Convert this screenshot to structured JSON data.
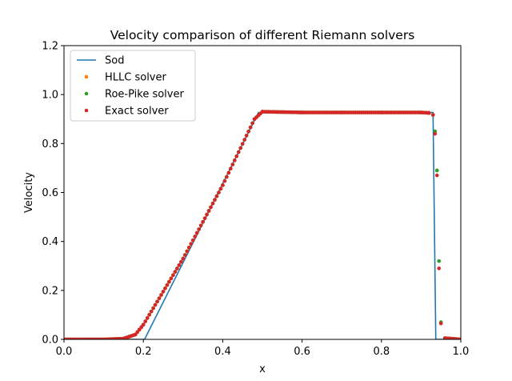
{
  "chart_data": {
    "type": "line",
    "title": "Velocity comparison of different Riemann solvers",
    "xlabel": "x",
    "ylabel": "Velocity",
    "xlim": [
      0,
      1
    ],
    "ylim": [
      0,
      1.2
    ],
    "xticks": [
      "0.0",
      "0.2",
      "0.4",
      "0.6",
      "0.8",
      "1.0"
    ],
    "yticks": [
      "0.0",
      "0.2",
      "0.4",
      "0.6",
      "0.8",
      "1.0",
      "1.2"
    ],
    "grid": false,
    "legend_position": "top-left",
    "series": [
      {
        "name": "Sod",
        "style": "line",
        "color": "#1f77b4",
        "x": [
          0.0,
          0.203,
          0.49,
          0.93,
          0.937,
          1.0
        ],
        "y": [
          0.0,
          0.0,
          0.927,
          0.927,
          0.0,
          0.0
        ]
      },
      {
        "name": "HLLC solver",
        "style": "dots",
        "color": "#ff7f0e",
        "x": [
          0.0,
          0.1,
          0.15,
          0.18,
          0.19,
          0.2,
          0.3,
          0.4,
          0.48,
          0.5,
          0.6,
          0.7,
          0.8,
          0.9,
          0.92,
          0.93,
          0.935,
          0.94,
          0.945,
          0.95,
          0.96,
          1.0
        ],
        "y": [
          0.0,
          0.0,
          0.003,
          0.02,
          0.04,
          0.06,
          0.33,
          0.63,
          0.9,
          0.93,
          0.927,
          0.927,
          0.927,
          0.927,
          0.925,
          0.917,
          0.85,
          0.69,
          0.32,
          0.07,
          0.005,
          0.0
        ]
      },
      {
        "name": "Roe-Pike solver",
        "style": "dots",
        "color": "#2ca02c",
        "x": [
          0.0,
          0.1,
          0.15,
          0.18,
          0.19,
          0.2,
          0.3,
          0.4,
          0.48,
          0.5,
          0.6,
          0.7,
          0.8,
          0.9,
          0.92,
          0.93,
          0.935,
          0.94,
          0.945,
          0.95,
          0.96,
          1.0
        ],
        "y": [
          0.0,
          0.0,
          0.003,
          0.02,
          0.04,
          0.06,
          0.33,
          0.63,
          0.9,
          0.93,
          0.927,
          0.927,
          0.927,
          0.927,
          0.925,
          0.917,
          0.85,
          0.69,
          0.32,
          0.07,
          0.005,
          0.0
        ]
      },
      {
        "name": "Exact solver",
        "style": "dots",
        "color": "#d62728",
        "x": [
          0.0,
          0.1,
          0.15,
          0.18,
          0.19,
          0.2,
          0.3,
          0.4,
          0.48,
          0.5,
          0.6,
          0.7,
          0.8,
          0.9,
          0.92,
          0.93,
          0.935,
          0.94,
          0.945,
          0.95,
          0.96,
          1.0
        ],
        "y": [
          0.0,
          0.0,
          0.003,
          0.02,
          0.04,
          0.06,
          0.33,
          0.63,
          0.9,
          0.93,
          0.927,
          0.927,
          0.927,
          0.927,
          0.925,
          0.917,
          0.84,
          0.67,
          0.29,
          0.065,
          0.005,
          0.0
        ]
      }
    ]
  }
}
